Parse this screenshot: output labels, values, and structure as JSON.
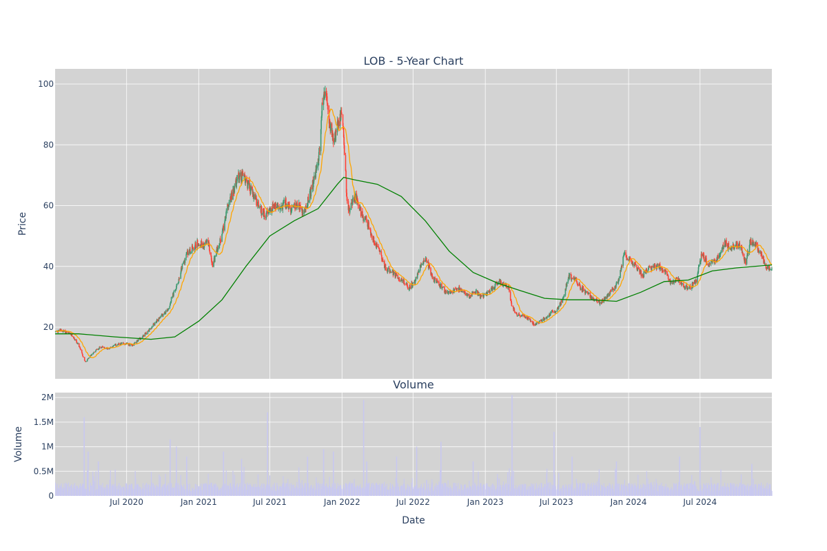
{
  "chart_data": [
    {
      "type": "candlestick",
      "title": "LOB - 5-Year Chart",
      "ylabel": "Price",
      "xlim": [
        "2020-01-01",
        "2024-12-31"
      ],
      "ylim": [
        3,
        105
      ],
      "yticks": [
        20,
        40,
        60,
        80,
        100
      ],
      "grid": true,
      "increasing_color": "#3d9970",
      "decreasing_color": "#ff4136",
      "ma_short_color": "#ffa500",
      "ma_long_color": "#008000",
      "close_path": [
        [
          "2020-01-02",
          18.5
        ],
        [
          "2020-01-15",
          19.0
        ],
        [
          "2020-02-01",
          18.2
        ],
        [
          "2020-02-15",
          17.0
        ],
        [
          "2020-03-01",
          14.0
        ],
        [
          "2020-03-10",
          11.0
        ],
        [
          "2020-03-18",
          8.5
        ],
        [
          "2020-03-28",
          10.0
        ],
        [
          "2020-04-10",
          12.0
        ],
        [
          "2020-04-25",
          13.5
        ],
        [
          "2020-05-15",
          13.0
        ],
        [
          "2020-06-01",
          14.0
        ],
        [
          "2020-06-15",
          14.5
        ],
        [
          "2020-07-01",
          14.5
        ],
        [
          "2020-07-15",
          14.0
        ],
        [
          "2020-08-01",
          16.0
        ],
        [
          "2020-08-20",
          18.0
        ],
        [
          "2020-09-10",
          21.0
        ],
        [
          "2020-10-01",
          24.0
        ],
        [
          "2020-10-15",
          26.0
        ],
        [
          "2020-10-25",
          30.0
        ],
        [
          "2020-11-05",
          33.0
        ],
        [
          "2020-11-20",
          40.0
        ],
        [
          "2020-12-01",
          44.0
        ],
        [
          "2020-12-15",
          46.0
        ],
        [
          "2021-01-01",
          48.0
        ],
        [
          "2021-01-10",
          47.0
        ],
        [
          "2021-01-25",
          48.0
        ],
        [
          "2021-02-05",
          40.0
        ],
        [
          "2021-02-15",
          45.0
        ],
        [
          "2021-03-01",
          50.0
        ],
        [
          "2021-03-10",
          57.0
        ],
        [
          "2021-03-25",
          63.0
        ],
        [
          "2021-04-10",
          69.0
        ],
        [
          "2021-04-25",
          70.0
        ],
        [
          "2021-05-10",
          66.0
        ],
        [
          "2021-05-25",
          62.0
        ],
        [
          "2021-06-10",
          58.0
        ],
        [
          "2021-06-25",
          57.0
        ],
        [
          "2021-07-10",
          60.0
        ],
        [
          "2021-07-25",
          59.0
        ],
        [
          "2021-08-10",
          61.0
        ],
        [
          "2021-08-25",
          58.0
        ],
        [
          "2021-09-10",
          61.0
        ],
        [
          "2021-09-25",
          57.0
        ],
        [
          "2021-10-10",
          63.0
        ],
        [
          "2021-10-25",
          70.0
        ],
        [
          "2021-11-05",
          78.0
        ],
        [
          "2021-11-12",
          95.0
        ],
        [
          "2021-11-20",
          97.0
        ],
        [
          "2021-12-01",
          87.0
        ],
        [
          "2021-12-10",
          80.0
        ],
        [
          "2021-12-20",
          86.0
        ],
        [
          "2021-12-29",
          91.0
        ],
        [
          "2022-01-05",
          83.0
        ],
        [
          "2022-01-12",
          65.0
        ],
        [
          "2022-01-20",
          57.0
        ],
        [
          "2022-01-28",
          62.0
        ],
        [
          "2022-02-05",
          63.0
        ],
        [
          "2022-02-20",
          57.0
        ],
        [
          "2022-03-05",
          55.0
        ],
        [
          "2022-03-20",
          49.0
        ],
        [
          "2022-04-05",
          46.0
        ],
        [
          "2022-04-20",
          40.0
        ],
        [
          "2022-05-05",
          38.0
        ],
        [
          "2022-05-20",
          37.0
        ],
        [
          "2022-06-05",
          35.0
        ],
        [
          "2022-06-20",
          33.0
        ],
        [
          "2022-07-05",
          35.0
        ],
        [
          "2022-07-20",
          40.0
        ],
        [
          "2022-08-05",
          42.0
        ],
        [
          "2022-08-20",
          36.0
        ],
        [
          "2022-09-05",
          34.0
        ],
        [
          "2022-09-20",
          32.0
        ],
        [
          "2022-10-05",
          31.0
        ],
        [
          "2022-10-20",
          33.0
        ],
        [
          "2022-11-05",
          32.0
        ],
        [
          "2022-11-20",
          30.0
        ],
        [
          "2022-12-05",
          32.0
        ],
        [
          "2022-12-20",
          30.0
        ],
        [
          "2023-01-05",
          31.0
        ],
        [
          "2023-01-20",
          33.0
        ],
        [
          "2023-02-05",
          35.0
        ],
        [
          "2023-02-20",
          34.0
        ],
        [
          "2023-03-01",
          33.0
        ],
        [
          "2023-03-10",
          27.0
        ],
        [
          "2023-03-20",
          24.0
        ],
        [
          "2023-04-05",
          24.0
        ],
        [
          "2023-04-20",
          23.0
        ],
        [
          "2023-05-05",
          21.0
        ],
        [
          "2023-05-20",
          22.0
        ],
        [
          "2023-06-05",
          23.0
        ],
        [
          "2023-06-20",
          25.0
        ],
        [
          "2023-07-05",
          26.0
        ],
        [
          "2023-07-20",
          30.0
        ],
        [
          "2023-08-01",
          37.0
        ],
        [
          "2023-08-15",
          36.0
        ],
        [
          "2023-09-01",
          33.0
        ],
        [
          "2023-09-20",
          31.0
        ],
        [
          "2023-10-05",
          29.0
        ],
        [
          "2023-10-20",
          28.0
        ],
        [
          "2023-11-05",
          30.0
        ],
        [
          "2023-11-20",
          32.0
        ],
        [
          "2023-12-05",
          35.0
        ],
        [
          "2023-12-20",
          44.0
        ],
        [
          "2024-01-05",
          42.0
        ],
        [
          "2024-01-20",
          40.0
        ],
        [
          "2024-02-05",
          37.0
        ],
        [
          "2024-02-20",
          39.0
        ],
        [
          "2024-03-05",
          40.0
        ],
        [
          "2024-03-20",
          40.0
        ],
        [
          "2024-04-05",
          38.0
        ],
        [
          "2024-04-20",
          34.0
        ],
        [
          "2024-05-05",
          36.0
        ],
        [
          "2024-05-20",
          33.0
        ],
        [
          "2024-06-05",
          33.0
        ],
        [
          "2024-06-20",
          35.0
        ],
        [
          "2024-07-05",
          44.0
        ],
        [
          "2024-07-20",
          41.0
        ],
        [
          "2024-08-05",
          42.0
        ],
        [
          "2024-08-20",
          43.0
        ],
        [
          "2024-09-01",
          48.0
        ],
        [
          "2024-09-15",
          46.0
        ],
        [
          "2024-10-01",
          47.0
        ],
        [
          "2024-10-15",
          46.0
        ],
        [
          "2024-10-25",
          41.0
        ],
        [
          "2024-11-05",
          48.0
        ],
        [
          "2024-11-20",
          47.0
        ],
        [
          "2024-12-05",
          44.0
        ],
        [
          "2024-12-15",
          40.0
        ],
        [
          "2024-12-31",
          39.0
        ]
      ],
      "ma_long_path": [
        [
          "2020-01-01",
          17.8
        ],
        [
          "2020-03-01",
          17.8
        ],
        [
          "2020-06-01",
          16.8
        ],
        [
          "2020-09-01",
          16.0
        ],
        [
          "2020-11-01",
          16.8
        ],
        [
          "2021-01-01",
          22.0
        ],
        [
          "2021-03-01",
          29.0
        ],
        [
          "2021-05-01",
          40.0
        ],
        [
          "2021-07-01",
          50.0
        ],
        [
          "2021-09-01",
          55.0
        ],
        [
          "2021-11-01",
          59.0
        ],
        [
          "2021-12-20",
          67.0
        ],
        [
          "2022-01-05",
          69.3
        ],
        [
          "2022-02-01",
          68.5
        ],
        [
          "2022-04-01",
          67.0
        ],
        [
          "2022-06-01",
          63.0
        ],
        [
          "2022-08-01",
          55.0
        ],
        [
          "2022-10-01",
          45.0
        ],
        [
          "2022-12-01",
          38.0
        ],
        [
          "2023-02-01",
          34.5
        ],
        [
          "2023-04-01",
          32.0
        ],
        [
          "2023-06-01",
          29.5
        ],
        [
          "2023-08-01",
          29.0
        ],
        [
          "2023-10-01",
          29.0
        ],
        [
          "2023-12-01",
          28.5
        ],
        [
          "2024-02-01",
          31.5
        ],
        [
          "2024-04-01",
          35.0
        ],
        [
          "2024-06-01",
          35.5
        ],
        [
          "2024-08-01",
          38.5
        ],
        [
          "2024-10-01",
          39.5
        ],
        [
          "2024-12-31",
          40.5
        ]
      ]
    },
    {
      "type": "bar",
      "title": "Volume",
      "xlabel": "Date",
      "ylabel": "Volume",
      "ylim": [
        0,
        2100000
      ],
      "yticks": [
        {
          "value": 0,
          "label": "0"
        },
        {
          "value": 500000,
          "label": "0.5M"
        },
        {
          "value": 1000000,
          "label": "1M"
        },
        {
          "value": 1500000,
          "label": "1.5M"
        },
        {
          "value": 2000000,
          "label": "2M"
        }
      ],
      "xticks": [
        {
          "date": "2020-07-01",
          "label": "Jul 2020"
        },
        {
          "date": "2021-01-01",
          "label": "Jan 2021"
        },
        {
          "date": "2021-07-01",
          "label": "Jul 2021"
        },
        {
          "date": "2022-01-01",
          "label": "Jan 2022"
        },
        {
          "date": "2022-07-01",
          "label": "Jul 2022"
        },
        {
          "date": "2023-01-01",
          "label": "Jan 2023"
        },
        {
          "date": "2023-07-01",
          "label": "Jul 2023"
        },
        {
          "date": "2024-01-01",
          "label": "Jan 2024"
        },
        {
          "date": "2024-07-01",
          "label": "Jul 2024"
        }
      ],
      "bar_color": "#c8c8f0",
      "spikes": [
        [
          "2020-03-15",
          1600000
        ],
        [
          "2020-03-25",
          900000
        ],
        [
          "2020-04-20",
          700000
        ],
        [
          "2020-10-20",
          1150000
        ],
        [
          "2020-11-05",
          1000000
        ],
        [
          "2020-12-01",
          800000
        ],
        [
          "2021-03-05",
          900000
        ],
        [
          "2021-04-20",
          750000
        ],
        [
          "2021-06-25",
          1700000
        ],
        [
          "2021-10-05",
          800000
        ],
        [
          "2021-11-15",
          950000
        ],
        [
          "2021-12-10",
          900000
        ],
        [
          "2022-02-25",
          1950000
        ],
        [
          "2022-03-05",
          700000
        ],
        [
          "2022-05-20",
          800000
        ],
        [
          "2022-07-10",
          1000000
        ],
        [
          "2022-09-10",
          1100000
        ],
        [
          "2022-12-01",
          700000
        ],
        [
          "2023-03-10",
          2050000
        ],
        [
          "2023-06-25",
          1300000
        ],
        [
          "2023-08-10",
          800000
        ],
        [
          "2023-12-01",
          700000
        ],
        [
          "2024-05-10",
          800000
        ],
        [
          "2024-07-01",
          1400000
        ],
        [
          "2024-11-10",
          650000
        ]
      ]
    }
  ]
}
